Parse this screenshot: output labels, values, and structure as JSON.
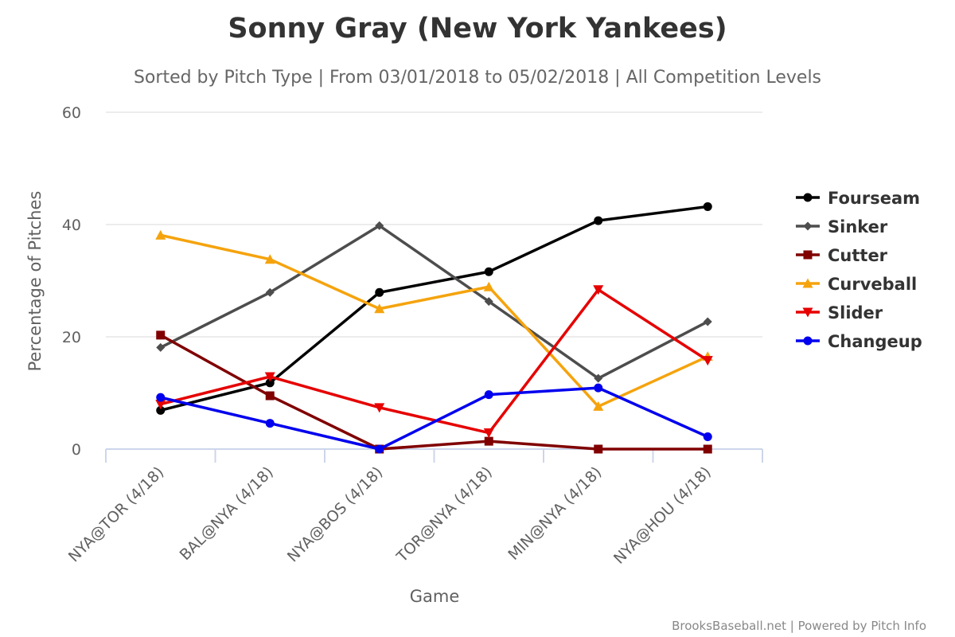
{
  "chart_data": {
    "type": "line",
    "title": "Sonny Gray (New York Yankees)",
    "subtitle": "Sorted by Pitch Type | From 03/01/2018 to 05/02/2018 | All Competition Levels",
    "xlabel": "Game",
    "ylabel": "Percentage of Pitches",
    "ylim": [
      0,
      60
    ],
    "yticks": [
      0,
      20,
      40,
      60
    ],
    "grid": true,
    "legend_position": "right",
    "categories": [
      "NYA@TOR (4/18)",
      "BAL@NYA (4/18)",
      "NYA@BOS (4/18)",
      "TOR@NYA (4/18)",
      "MIN@NYA (4/18)",
      "NYA@HOU (4/18)"
    ],
    "series": [
      {
        "name": "Fourseam",
        "color": "#000000",
        "marker": "circle",
        "values": [
          6.9,
          11.8,
          27.9,
          31.6,
          40.7,
          43.2
        ]
      },
      {
        "name": "Sinker",
        "color": "#4d4d4d",
        "marker": "diamond",
        "values": [
          18.1,
          27.9,
          39.8,
          26.3,
          12.6,
          22.7
        ]
      },
      {
        "name": "Cutter",
        "color": "#800000",
        "marker": "square",
        "values": [
          20.3,
          9.5,
          0,
          1.4,
          0,
          0
        ]
      },
      {
        "name": "Curveball",
        "color": "#f5a30d",
        "marker": "triangle",
        "values": [
          38.1,
          33.8,
          25.0,
          28.9,
          7.6,
          16.5
        ]
      },
      {
        "name": "Slider",
        "color": "#e60000",
        "marker": "triangle-down",
        "values": [
          8.0,
          12.9,
          7.4,
          2.9,
          28.4,
          15.8
        ]
      },
      {
        "name": "Changeup",
        "color": "#0000ee",
        "marker": "circle",
        "values": [
          9.2,
          4.6,
          0,
          9.7,
          10.9,
          2.2
        ]
      }
    ],
    "credits": "BrooksBaseball.net | Powered by Pitch Info"
  }
}
